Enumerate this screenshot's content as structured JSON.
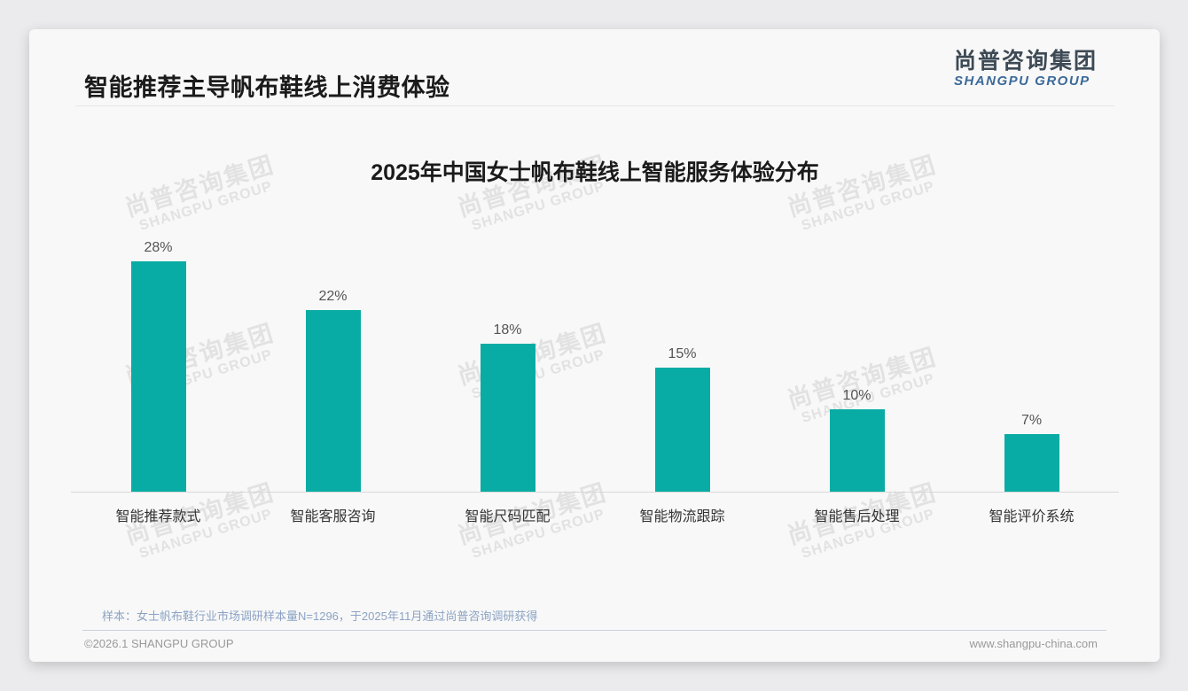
{
  "page": {
    "title": "智能推荐主导帆布鞋线上消费体验"
  },
  "logo": {
    "cn": "尚普咨询集团",
    "en": "SHANGPU GROUP"
  },
  "watermark": {
    "cn": "尚普咨询集团",
    "en": "SHANGPU GROUP"
  },
  "chart_data": {
    "type": "bar",
    "title": "2025年中国女士帆布鞋线上智能服务体验分布",
    "categories": [
      "智能推荐款式",
      "智能客服咨询",
      "智能尺码匹配",
      "智能物流跟踪",
      "智能售后处理",
      "智能评价系统"
    ],
    "values": [
      28,
      22,
      18,
      15,
      10,
      7
    ],
    "value_labels": [
      "28%",
      "22%",
      "18%",
      "15%",
      "10%",
      "7%"
    ],
    "unit": "%",
    "bar_color": "#09aca4",
    "value_label_color": "#545454",
    "ylim": [
      0,
      30
    ],
    "grid": false,
    "legend": "none"
  },
  "footer": {
    "source_note": "样本：女士帆布鞋行业市场调研样本量N=1296，于2025年11月通过尚普咨询调研获得",
    "copyright": "©2026.1 SHANGPU GROUP",
    "website": "www.shangpu-china.com"
  }
}
